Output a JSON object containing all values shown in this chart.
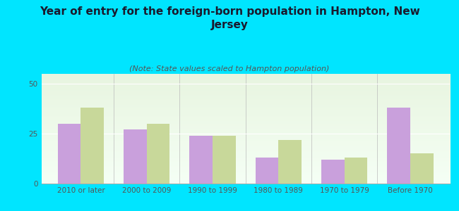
{
  "title": "Year of entry for the foreign-born population in Hampton, New\nJersey",
  "subtitle": "(Note: State values scaled to Hampton population)",
  "categories": [
    "2010 or later",
    "2000 to 2009",
    "1990 to 1999",
    "1980 to 1989",
    "1970 to 1979",
    "Before 1970"
  ],
  "hampton_values": [
    30,
    27,
    24,
    13,
    12,
    38
  ],
  "nj_values": [
    38,
    30,
    24,
    22,
    13,
    15
  ],
  "hampton_color": "#c9a0dc",
  "nj_color": "#c8d89a",
  "background_color": "#00e5ff",
  "plot_bg_top": "#e8f5e0",
  "plot_bg_bottom": "#f5fff5",
  "ylim": [
    0,
    55
  ],
  "yticks": [
    0,
    25,
    50
  ],
  "bar_width": 0.35,
  "title_fontsize": 11,
  "subtitle_fontsize": 8,
  "tick_fontsize": 7.5,
  "legend_fontsize": 9
}
